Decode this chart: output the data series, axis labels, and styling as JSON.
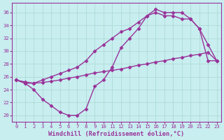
{
  "xlabel": "Windchill (Refroidissement éolien,°C)",
  "ylabel": "",
  "bg_color": "#c8eef0",
  "line_color": "#993399",
  "grid_color": "#a8d8d0",
  "xlim": [
    -0.5,
    23.5
  ],
  "ylim": [
    19.0,
    37.5
  ],
  "xticks": [
    0,
    1,
    2,
    3,
    4,
    5,
    6,
    7,
    8,
    9,
    10,
    11,
    12,
    13,
    14,
    15,
    16,
    17,
    18,
    19,
    20,
    21,
    22,
    23
  ],
  "yticks": [
    20,
    22,
    24,
    26,
    28,
    30,
    32,
    34,
    36
  ],
  "line1_x": [
    0,
    1,
    2,
    3,
    4,
    5,
    6,
    7,
    8,
    9,
    10,
    11,
    12,
    13,
    14,
    15,
    16,
    17,
    18,
    19,
    20,
    21,
    22,
    23
  ],
  "line1_y": [
    25.5,
    25.0,
    24.0,
    22.5,
    21.5,
    20.5,
    20.0,
    20.0,
    21.0,
    24.5,
    25.5,
    27.5,
    30.5,
    32.0,
    33.5,
    35.5,
    36.5,
    36.0,
    36.0,
    36.0,
    35.0,
    33.5,
    28.5,
    28.5
  ],
  "line2_x": [
    0,
    1,
    2,
    3,
    4,
    5,
    6,
    7,
    8,
    9,
    10,
    11,
    12,
    13,
    14,
    15,
    16,
    17,
    18,
    19,
    20,
    21,
    22,
    23
  ],
  "line2_y": [
    25.5,
    25.2,
    25.0,
    25.1,
    25.3,
    25.5,
    25.8,
    26.0,
    26.3,
    26.6,
    26.8,
    27.0,
    27.2,
    27.5,
    27.8,
    28.0,
    28.3,
    28.5,
    28.8,
    29.0,
    29.3,
    29.5,
    29.8,
    28.5
  ],
  "line3_x": [
    0,
    1,
    2,
    3,
    4,
    5,
    6,
    7,
    8,
    9,
    10,
    11,
    12,
    13,
    14,
    15,
    16,
    17,
    18,
    19,
    20,
    21,
    22,
    23
  ],
  "line3_y": [
    25.5,
    25.0,
    25.0,
    25.5,
    26.0,
    26.5,
    27.0,
    27.5,
    28.5,
    30.0,
    31.0,
    32.0,
    33.0,
    33.5,
    34.5,
    35.5,
    36.0,
    35.5,
    35.5,
    35.0,
    35.0,
    33.5,
    31.0,
    28.5
  ],
  "marker": "D",
  "markersize": 2.5,
  "linewidth": 1.0,
  "tick_fontsize": 5.2,
  "label_fontsize": 6.2
}
